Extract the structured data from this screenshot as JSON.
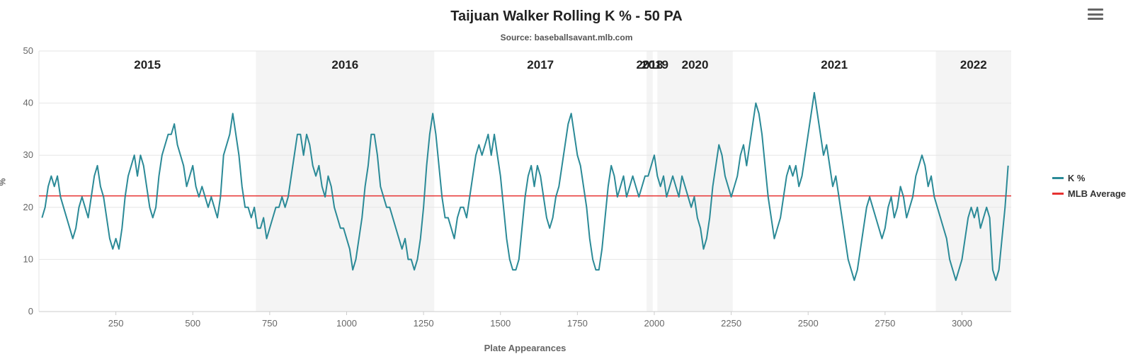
{
  "chart_data": {
    "type": "line",
    "title": "Taijuan Walker Rolling K % - 50 PA",
    "subtitle": "Source: baseballsavant.mlb.com",
    "xlabel": "Plate Appearances",
    "ylabel": "%",
    "xlim": [
      0,
      3160
    ],
    "ylim": [
      0,
      50
    ],
    "x_ticks": [
      250,
      500,
      750,
      1000,
      1250,
      1500,
      1750,
      2000,
      2250,
      2500,
      2750,
      3000
    ],
    "y_ticks": [
      0,
      10,
      20,
      30,
      40,
      50
    ],
    "grid": "horizontal",
    "legend_position": "right",
    "mlb_average": 22.2,
    "colors": {
      "k_line": "#2b8a97",
      "mlb_line": "#e63231",
      "band": "#f4f4f4",
      "grid": "#e6e6e6",
      "axis": "#cccccc"
    },
    "seasons": [
      {
        "year": "2015",
        "start": 0,
        "end": 705,
        "shaded": false
      },
      {
        "year": "2016",
        "start": 705,
        "end": 1285,
        "shaded": true
      },
      {
        "year": "2017",
        "start": 1285,
        "end": 1975,
        "shaded": false
      },
      {
        "year": "2018",
        "start": 1975,
        "end": 1995,
        "shaded": true
      },
      {
        "year": "2019",
        "start": 1995,
        "end": 2010,
        "shaded": false
      },
      {
        "year": "2020",
        "start": 2010,
        "end": 2255,
        "shaded": true
      },
      {
        "year": "2021",
        "start": 2255,
        "end": 2915,
        "shaded": false
      },
      {
        "year": "2022",
        "start": 2915,
        "end": 3160,
        "shaded": true
      }
    ],
    "series": [
      {
        "name": "K %",
        "color": "#2b8a97",
        "start_pa": 10,
        "step_pa": 10,
        "values": [
          18,
          20,
          24,
          26,
          24,
          26,
          22,
          20,
          18,
          16,
          14,
          16,
          20,
          22,
          20,
          18,
          22,
          26,
          28,
          24,
          22,
          18,
          14,
          12,
          14,
          12,
          16,
          22,
          26,
          28,
          30,
          26,
          30,
          28,
          24,
          20,
          18,
          20,
          26,
          30,
          32,
          34,
          34,
          36,
          32,
          30,
          28,
          24,
          26,
          28,
          24,
          22,
          24,
          22,
          20,
          22,
          20,
          18,
          22,
          30,
          32,
          34,
          38,
          34,
          30,
          24,
          20,
          20,
          18,
          20,
          16,
          16,
          18,
          14,
          16,
          18,
          20,
          20,
          22,
          20,
          22,
          26,
          30,
          34,
          34,
          30,
          34,
          32,
          28,
          26,
          28,
          24,
          22,
          26,
          24,
          20,
          18,
          16,
          16,
          14,
          12,
          8,
          10,
          14,
          18,
          24,
          28,
          34,
          34,
          30,
          24,
          22,
          20,
          20,
          18,
          16,
          14,
          12,
          14,
          10,
          10,
          8,
          10,
          14,
          20,
          28,
          34,
          38,
          34,
          28,
          22,
          18,
          18,
          16,
          14,
          18,
          20,
          20,
          18,
          22,
          26,
          30,
          32,
          30,
          32,
          34,
          30,
          34,
          30,
          26,
          20,
          14,
          10,
          8,
          8,
          10,
          16,
          22,
          26,
          28,
          24,
          28,
          26,
          22,
          18,
          16,
          18,
          22,
          24,
          28,
          32,
          36,
          38,
          34,
          30,
          28,
          24,
          20,
          14,
          10,
          8,
          8,
          12,
          18,
          24,
          28,
          26,
          22,
          24,
          26,
          22,
          24,
          26,
          24,
          22,
          24,
          26,
          26,
          28,
          30,
          26,
          24,
          26,
          22,
          24,
          26,
          24,
          22,
          26,
          24,
          22,
          20,
          22,
          18,
          16,
          12,
          14,
          18,
          24,
          28,
          32,
          30,
          26,
          24,
          22,
          24,
          26,
          30,
          32,
          28,
          32,
          36,
          40,
          38,
          34,
          28,
          22,
          18,
          14,
          16,
          18,
          22,
          26,
          28,
          26,
          28,
          24,
          26,
          30,
          34,
          38,
          42,
          38,
          34,
          30,
          32,
          28,
          24,
          26,
          22,
          18,
          14,
          10,
          8,
          6,
          8,
          12,
          16,
          20,
          22,
          20,
          18,
          16,
          14,
          16,
          20,
          22,
          18,
          20,
          24,
          22,
          18,
          20,
          22,
          26,
          28,
          30,
          28,
          24,
          26,
          22,
          20,
          18,
          16,
          14,
          10,
          8,
          6,
          8,
          10,
          14,
          18,
          20,
          18,
          20,
          16,
          18,
          20,
          18,
          8,
          6,
          8,
          14,
          20,
          28
        ]
      },
      {
        "name": "MLB Average",
        "color": "#e63231",
        "value": 22.2
      }
    ]
  },
  "legend": {
    "items": [
      {
        "label": "K %",
        "color": "#2b8a97"
      },
      {
        "label": "MLB Average",
        "color": "#e63231"
      }
    ]
  }
}
